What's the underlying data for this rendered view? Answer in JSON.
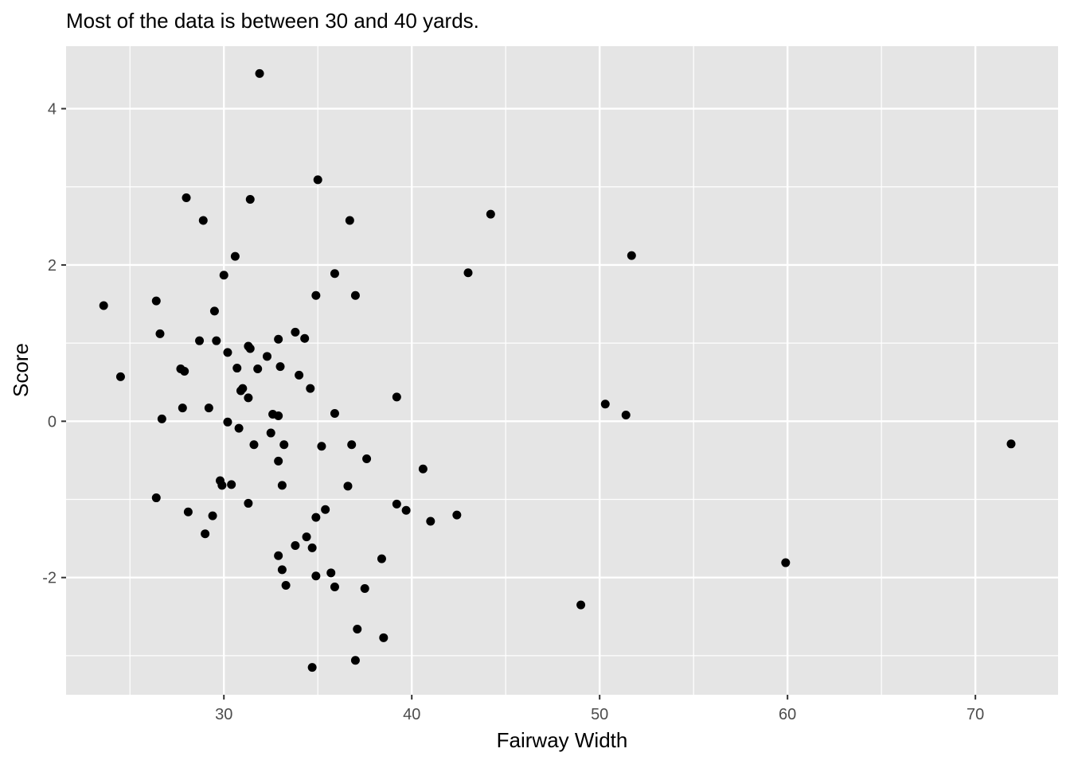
{
  "chart_data": {
    "type": "scatter",
    "title": "Most of the data is between 30 and 40 yards.",
    "xlabel": "Fairway Width",
    "ylabel": "Score",
    "xlim": [
      21.6,
      74.4
    ],
    "ylim": [
      -3.5,
      4.8
    ],
    "x_ticks": [
      30,
      40,
      50,
      60,
      70
    ],
    "y_ticks": [
      -2,
      0,
      2,
      4
    ],
    "x_tick_labels": [
      "30",
      "40",
      "50",
      "60",
      "70"
    ],
    "y_tick_labels": [
      "-2",
      "0",
      "2",
      "4"
    ],
    "grid": true,
    "legend": "none",
    "colors": {
      "panel": "#e5e5e5",
      "grid": "#ffffff",
      "point": "#000000",
      "tick": "#333333"
    },
    "points": [
      {
        "x": 23.6,
        "y": 1.48
      },
      {
        "x": 24.5,
        "y": 0.57
      },
      {
        "x": 26.4,
        "y": 1.54
      },
      {
        "x": 26.6,
        "y": 1.12
      },
      {
        "x": 26.7,
        "y": 0.03
      },
      {
        "x": 26.4,
        "y": -0.98
      },
      {
        "x": 27.7,
        "y": 0.67
      },
      {
        "x": 27.9,
        "y": 0.64
      },
      {
        "x": 27.8,
        "y": 0.17
      },
      {
        "x": 28.0,
        "y": 2.86
      },
      {
        "x": 28.1,
        "y": -1.16
      },
      {
        "x": 28.7,
        "y": 1.03
      },
      {
        "x": 28.9,
        "y": 2.57
      },
      {
        "x": 29.0,
        "y": -1.44
      },
      {
        "x": 29.2,
        "y": 0.17
      },
      {
        "x": 29.4,
        "y": -1.21
      },
      {
        "x": 29.5,
        "y": 1.41
      },
      {
        "x": 29.6,
        "y": 1.03
      },
      {
        "x": 29.8,
        "y": -0.76
      },
      {
        "x": 29.9,
        "y": -0.82
      },
      {
        "x": 30.0,
        "y": 1.87
      },
      {
        "x": 30.2,
        "y": 0.88
      },
      {
        "x": 30.2,
        "y": -0.01
      },
      {
        "x": 30.4,
        "y": -0.81
      },
      {
        "x": 30.6,
        "y": 2.11
      },
      {
        "x": 30.7,
        "y": 0.68
      },
      {
        "x": 30.8,
        "y": -0.09
      },
      {
        "x": 30.9,
        "y": 0.39
      },
      {
        "x": 31.0,
        "y": 0.42
      },
      {
        "x": 31.3,
        "y": 0.96
      },
      {
        "x": 31.4,
        "y": 0.93
      },
      {
        "x": 31.3,
        "y": 0.3
      },
      {
        "x": 31.4,
        "y": 2.84
      },
      {
        "x": 31.3,
        "y": -1.05
      },
      {
        "x": 31.6,
        "y": -0.3
      },
      {
        "x": 31.8,
        "y": 0.67
      },
      {
        "x": 31.9,
        "y": 4.45
      },
      {
        "x": 32.3,
        "y": 0.83
      },
      {
        "x": 32.5,
        "y": -0.15
      },
      {
        "x": 32.6,
        "y": 0.09
      },
      {
        "x": 32.9,
        "y": 0.07
      },
      {
        "x": 32.9,
        "y": 1.05
      },
      {
        "x": 33.0,
        "y": 0.7
      },
      {
        "x": 32.9,
        "y": -0.51
      },
      {
        "x": 33.2,
        "y": -0.3
      },
      {
        "x": 33.1,
        "y": -0.82
      },
      {
        "x": 32.9,
        "y": -1.72
      },
      {
        "x": 33.1,
        "y": -1.9
      },
      {
        "x": 33.3,
        "y": -2.1
      },
      {
        "x": 33.8,
        "y": 1.14
      },
      {
        "x": 34.0,
        "y": 0.59
      },
      {
        "x": 34.3,
        "y": 1.06
      },
      {
        "x": 33.8,
        "y": -1.59
      },
      {
        "x": 34.4,
        "y": -1.48
      },
      {
        "x": 34.6,
        "y": 0.42
      },
      {
        "x": 34.7,
        "y": -1.62
      },
      {
        "x": 34.9,
        "y": -1.23
      },
      {
        "x": 34.9,
        "y": 1.61
      },
      {
        "x": 35.0,
        "y": 3.09
      },
      {
        "x": 34.9,
        "y": -1.98
      },
      {
        "x": 34.7,
        "y": -3.15
      },
      {
        "x": 35.2,
        "y": -0.32
      },
      {
        "x": 35.4,
        "y": -1.13
      },
      {
        "x": 35.7,
        "y": -1.94
      },
      {
        "x": 35.9,
        "y": 1.89
      },
      {
        "x": 35.9,
        "y": 0.1
      },
      {
        "x": 35.9,
        "y": -2.12
      },
      {
        "x": 36.6,
        "y": -0.83
      },
      {
        "x": 36.7,
        "y": 2.57
      },
      {
        "x": 36.8,
        "y": -0.3
      },
      {
        "x": 37.0,
        "y": 1.61
      },
      {
        "x": 37.1,
        "y": -2.66
      },
      {
        "x": 37.0,
        "y": -3.06
      },
      {
        "x": 37.5,
        "y": -2.14
      },
      {
        "x": 37.6,
        "y": -0.48
      },
      {
        "x": 38.4,
        "y": -1.76
      },
      {
        "x": 38.5,
        "y": -2.77
      },
      {
        "x": 39.2,
        "y": 0.31
      },
      {
        "x": 39.2,
        "y": -1.06
      },
      {
        "x": 39.7,
        "y": -1.14
      },
      {
        "x": 40.6,
        "y": -0.61
      },
      {
        "x": 41.0,
        "y": -1.28
      },
      {
        "x": 42.4,
        "y": -1.2
      },
      {
        "x": 43.0,
        "y": 1.9
      },
      {
        "x": 44.2,
        "y": 2.65
      },
      {
        "x": 49.0,
        "y": -2.35
      },
      {
        "x": 50.3,
        "y": 0.22
      },
      {
        "x": 51.4,
        "y": 0.08
      },
      {
        "x": 51.7,
        "y": 2.12
      },
      {
        "x": 59.9,
        "y": -1.81
      },
      {
        "x": 71.9,
        "y": -0.29
      }
    ]
  }
}
